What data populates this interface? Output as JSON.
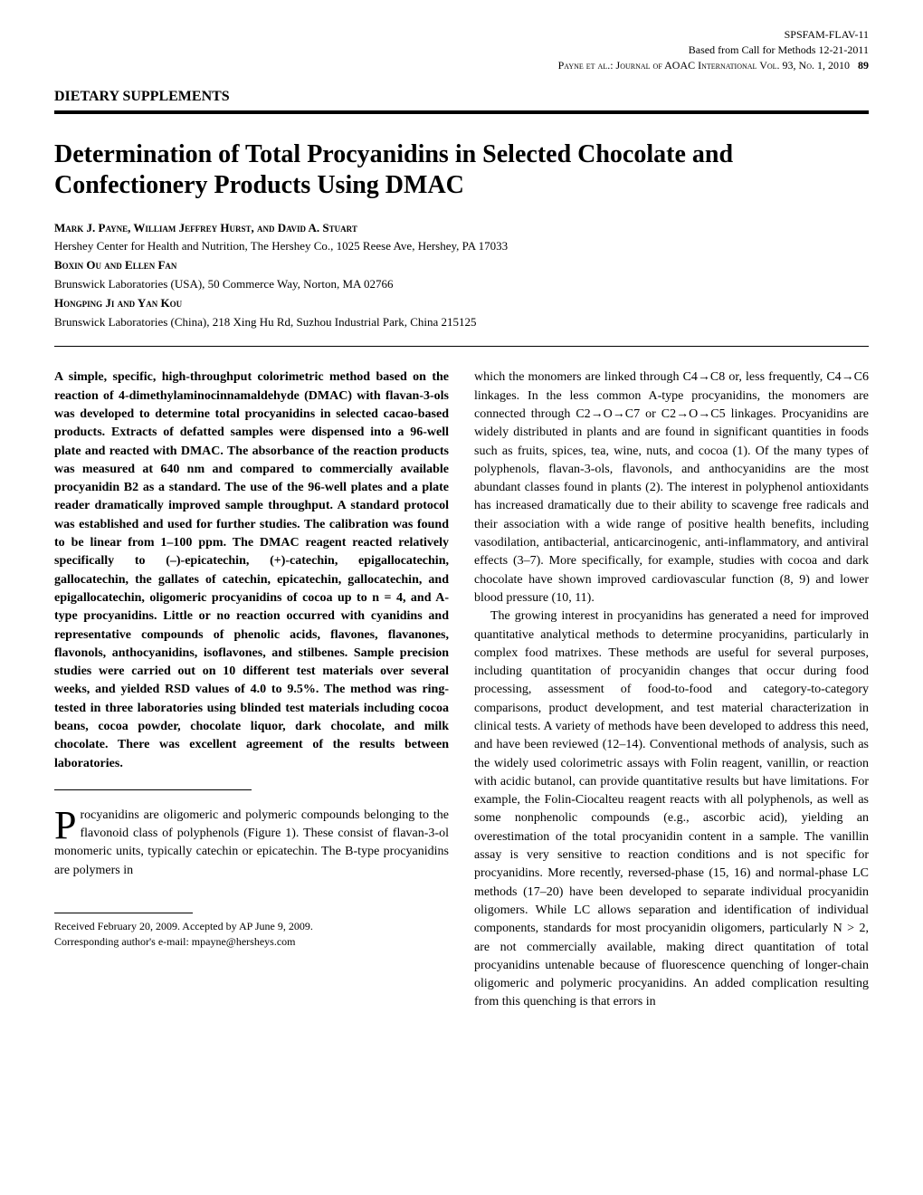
{
  "header": {
    "doc_id": "SPSFAM-FLAV-11",
    "call_for": "Based from Call for Methods 12-21-2011",
    "journal_prefix": "Payne et al.: Journal of AOAC International Vol. 93, No. 1, 2010",
    "page_number": "89"
  },
  "section": "DIETARY SUPPLEMENTS",
  "title": "Determination of Total Procyanidins in Selected Chocolate and Confectionery Products Using DMAC",
  "authors": {
    "group1_names": "Mark J. Payne, William Jeffrey Hurst, and David A. Stuart",
    "group1_affil": "Hershey Center for Health and Nutrition, The Hershey Co., 1025 Reese Ave, Hershey, PA 17033",
    "group2_names": "Boxin Ou and Ellen Fan",
    "group2_affil": "Brunswick Laboratories (USA), 50 Commerce Way, Norton, MA 02766",
    "group3_names": "Hongping Ji and Yan Kou",
    "group3_affil": "Brunswick Laboratories (China), 218 Xing Hu Rd, Suzhou Industrial Park, China 215125"
  },
  "abstract": "A simple, specific, high-throughput colorimetric method based on the reaction of 4-dimethylaminocinnamaldehyde (DMAC) with flavan-3-ols was developed to determine total procyanidins in selected cacao-based products. Extracts of defatted samples were dispensed into a 96-well plate and reacted with DMAC. The absorbance of the reaction products was measured at 640 nm and compared to commercially available procyanidin B2 as a standard. The use of the 96-well plates and a plate reader dramatically improved sample throughput. A standard protocol was established and used for further studies. The calibration was found to be linear from 1–100 ppm. The DMAC reagent reacted relatively specifically to (–)-epicatechin, (+)-catechin, epigallocatechin, gallocatechin, the gallates of catechin, epicatechin, gallocatechin, and epigallocatechin, oligomeric procyanidins of cocoa up to n = 4, and A-type procyanidins. Little or no reaction occurred with cyanidins and representative compounds of phenolic acids, flavones, flavanones, flavonols, anthocyanidins, isoflavones, and stilbenes. Sample precision studies were carried out on 10 different test materials over several weeks, and yielded RSD values of 4.0 to 9.5%. The method was ring-tested in three laboratories using blinded test materials including cocoa beans, cocoa powder, chocolate liquor, dark chocolate, and milk chocolate. There was excellent agreement of the results between laboratories.",
  "body": {
    "para1": "Procyanidins are oligomeric and polymeric compounds belonging to the flavonoid class of polyphenols (Figure 1). These consist of flavan-3-ol monomeric units, typically catechin or epicatechin. The B-type procyanidins are polymers in",
    "para2": "which the monomers are linked through C4→C8 or, less frequently, C4→C6 linkages. In the less common A-type procyanidins, the monomers are connected through C2→O→C7 or C2→O→C5 linkages. Procyanidins are widely distributed in plants and are found in significant quantities in foods such as fruits, spices, tea, wine, nuts, and cocoa (1). Of the many types of polyphenols, flavan-3-ols, flavonols, and anthocyanidins are the most abundant classes found in plants (2). The interest in polyphenol antioxidants has increased dramatically due to their ability to scavenge free radicals and their association with a wide range of positive health benefits, including vasodilation, antibacterial, anticarcinogenic, anti-inflammatory, and antiviral effects (3–7). More specifically, for example, studies with cocoa and dark chocolate have shown improved cardiovascular function (8, 9) and lower blood pressure (10, 11).",
    "para3": "The growing interest in procyanidins has generated a need for improved quantitative analytical methods to determine procyanidins, particularly in complex food matrixes. These methods are useful for several purposes, including quantitation of procyanidin changes that occur during food processing, assessment of food-to-food and category-to-category comparisons, product development, and test material characterization in clinical tests. A variety of methods have been developed to address this need, and have been reviewed (12–14). Conventional methods of analysis, such as the widely used colorimetric assays with Folin reagent, vanillin, or reaction with acidic butanol, can provide quantitative results but have limitations. For example, the Folin-Ciocalteu reagent reacts with all polyphenols, as well as some nonphenolic compounds (e.g., ascorbic acid), yielding an overestimation of the total procyanidin content in a sample. The vanillin assay is very sensitive to reaction conditions and is not specific for procyanidins. More recently, reversed-phase (15, 16) and normal-phase LC methods (17–20) have been developed to separate individual procyanidin oligomers. While LC allows separation and identification of individual components, standards for most procyanidin oligomers, particularly N > 2, are not commercially available, making direct quantitation of total procyanidins untenable because of fluorescence quenching of longer-chain oligomeric and polymeric procyanidins. An added complication resulting from this quenching is that errors in"
  },
  "footnote": {
    "received": "Received February 20, 2009. Accepted by AP June 9, 2009.",
    "corresponding": "Corresponding author's e-mail: mpayne@hersheys.com"
  }
}
